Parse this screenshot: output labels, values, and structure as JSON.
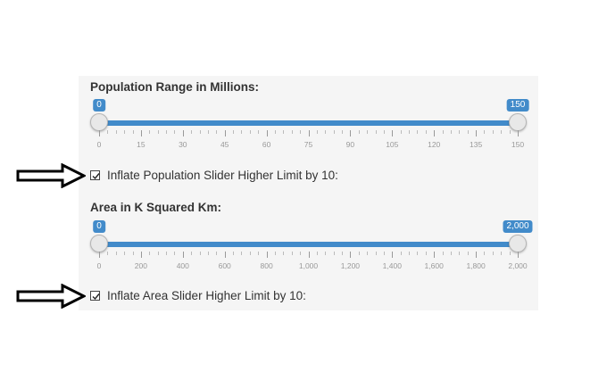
{
  "population": {
    "label": "Population Range in Millions:",
    "min": 0,
    "max": 150,
    "value_low": 0,
    "value_high": 150,
    "low_bubble": "0",
    "high_bubble": "150",
    "tick_labels": [
      "0",
      "15",
      "30",
      "45",
      "60",
      "75",
      "90",
      "105",
      "120",
      "135",
      "150"
    ],
    "checkbox_label": "Inflate Population Slider Higher Limit by 10:",
    "checked": true
  },
  "area": {
    "label": "Area in K Squared Km:",
    "min": 0,
    "max": 2000,
    "value_low": 0,
    "value_high": 2000,
    "low_bubble": "0",
    "high_bubble": "2,000",
    "tick_labels": [
      "0",
      "200",
      "400",
      "600",
      "800",
      "1,000",
      "1,200",
      "1,400",
      "1,600",
      "1,800",
      "2,000"
    ],
    "checkbox_label": "Inflate Area Slider Higher Limit by 10:",
    "checked": true
  },
  "colors": {
    "accent": "#428bca",
    "panel": "#f5f5f5"
  },
  "icons": {
    "pointer": "arrow-right-icon",
    "check": "check-icon"
  }
}
